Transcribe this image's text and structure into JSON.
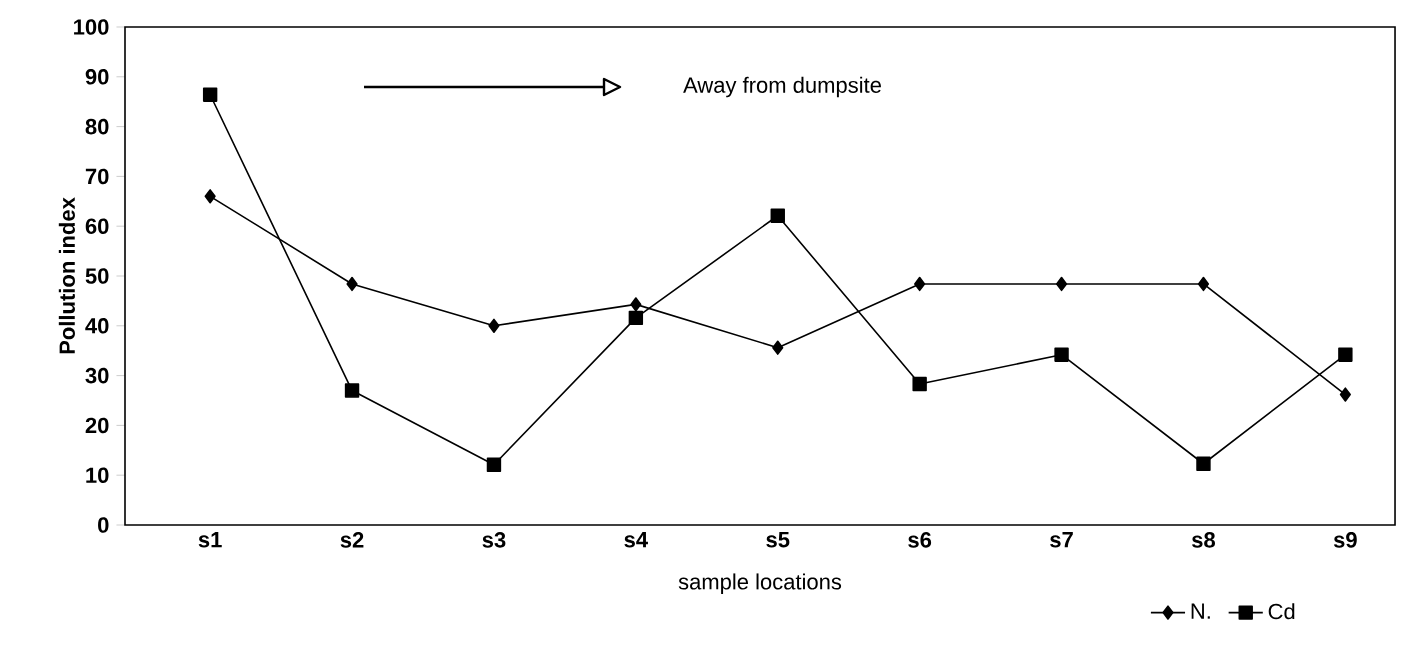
{
  "chart_data": {
    "type": "line",
    "xlabel": "sample locations",
    "ylabel": "Pollution index",
    "categories": [
      "s1",
      "s2",
      "s3",
      "s4",
      "s5",
      "s6",
      "s7",
      "s8",
      "s9"
    ],
    "series": [
      {
        "name": "N.",
        "color": "#000000",
        "marker": "diamond",
        "values": [
          66,
          48.4,
          40,
          44.3,
          35.6,
          48.4,
          48.4,
          48.4,
          26.2
        ]
      },
      {
        "name": "Cd",
        "color": "#000000",
        "marker": "square",
        "values": [
          86.4,
          27,
          12.1,
          41.6,
          62.1,
          28.3,
          34.2,
          12.3,
          34.2
        ]
      }
    ],
    "annotations": [
      "Away from dumpsite"
    ],
    "ylim": [
      0,
      100
    ],
    "yticks": [
      0,
      10,
      20,
      30,
      40,
      50,
      60,
      70,
      80,
      90,
      100
    ],
    "legend": "bottom right",
    "grid": false,
    "line_style": "solid"
  }
}
